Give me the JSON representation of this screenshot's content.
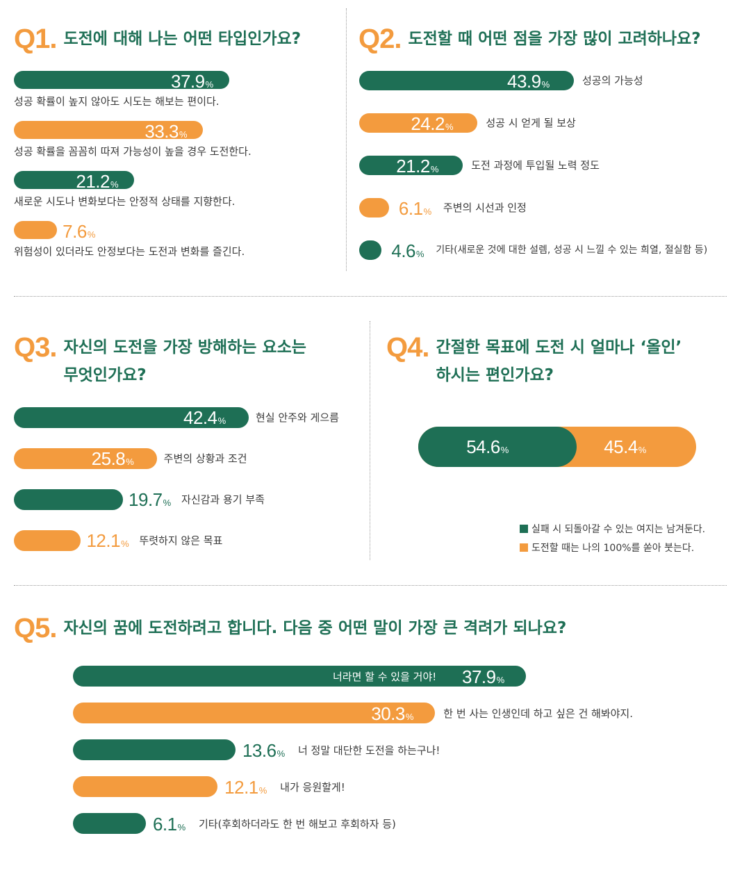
{
  "colors": {
    "green": "#1e6f55",
    "orange": "#f39b3e"
  },
  "percent_sign": "%",
  "chart_data": [
    {
      "type": "bar",
      "id": "q1",
      "number": "Q1.",
      "title": "도전에 대해 나는 어떤 타입인가요?",
      "categories": [
        "성공 확률이 높지 않아도 시도는 해보는 편이다.",
        "성공 확률을 꼼꼼히 따져 가능성이 높을 경우 도전한다.",
        "새로운 시도나 변화보다는 안정적 상태를 지향한다.",
        "위험성이 있더라도 안정보다는 도전과 변화를 즐긴다."
      ],
      "values": [
        37.9,
        33.3,
        21.2,
        7.6
      ],
      "labels": [
        "37.9",
        "33.3",
        "21.2",
        "7.6"
      ]
    },
    {
      "type": "bar",
      "id": "q2",
      "number": "Q2.",
      "title": "도전할 때 어떤 점을 가장 많이 고려하나요?",
      "categories": [
        "성공의 가능성",
        "성공 시 얻게 될 보상",
        "도전 과정에 투입될 노력 정도",
        "주변의 시선과 인정",
        "기타(새로운 것에 대한 설렘, 성공 시 느낄 수 있는 희열, 절실함 등)"
      ],
      "values": [
        43.9,
        24.2,
        21.2,
        6.1,
        4.6
      ],
      "labels": [
        "43.9",
        "24.2",
        "21.2",
        "6.1",
        "4.6"
      ]
    },
    {
      "type": "bar",
      "id": "q3",
      "number": "Q3.",
      "title": "자신의 도전을 가장 방해하는 요소는",
      "title2": "무엇인가요?",
      "categories": [
        "현실 안주와 게으름",
        "주변의 상황과 조건",
        "자신감과 용기 부족",
        "뚜렷하지 않은 목표"
      ],
      "values": [
        42.4,
        25.8,
        19.7,
        12.1
      ],
      "labels": [
        "42.4",
        "25.8",
        "19.7",
        "12.1"
      ]
    },
    {
      "type": "bar",
      "id": "q4",
      "number": "Q4.",
      "title": "간절한 목표에 도전 시 얼마나 ‘올인’",
      "title2": "하시는 편인가요?",
      "categories": [
        "실패 시 되돌아갈 수 있는 여지는 남겨둔다.",
        "도전할 때는 나의 100%를 쏟아 붓는다."
      ],
      "values": [
        54.6,
        45.4
      ],
      "labels": [
        "54.6",
        "45.4"
      ],
      "stacked": true,
      "legend_position": "bottom-right"
    },
    {
      "type": "bar",
      "id": "q5",
      "number": "Q5.",
      "title": "자신의 꿈에 도전하려고 합니다. 다음 중 어떤 말이 가장 큰 격려가 되나요?",
      "categories": [
        "너라면 할 수 있을 거야!",
        "한 번 사는 인생인데 하고 싶은 건 해봐야지.",
        "너 정말 대단한 도전을 하는구나!",
        "내가 응원할게!",
        "기타(후회하더라도 한 번 해보고 후회하자 등)"
      ],
      "values": [
        37.9,
        30.3,
        13.6,
        12.1,
        6.1
      ],
      "labels": [
        "37.9",
        "30.3",
        "13.6",
        "12.1",
        "6.1"
      ]
    }
  ]
}
